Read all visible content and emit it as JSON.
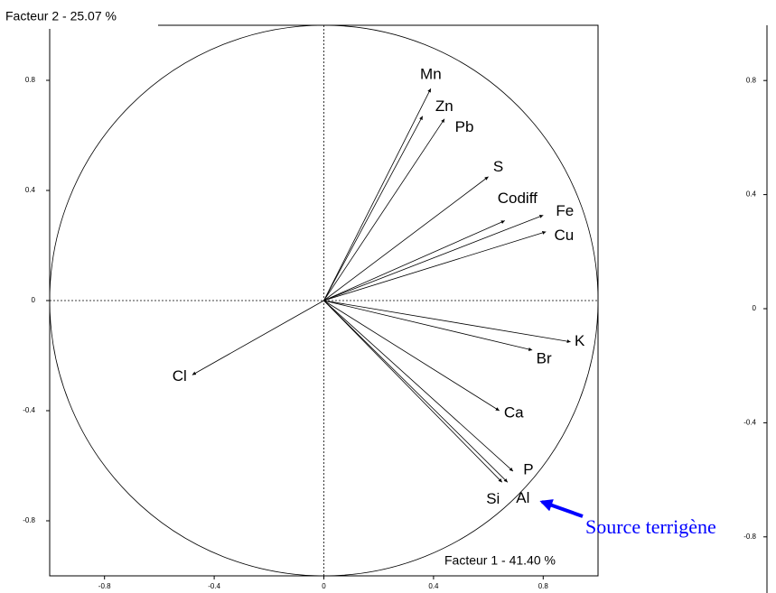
{
  "chart_data": [
    {
      "type": "correlation-circle",
      "title": "Facteur 2  -  25.07 %",
      "xlabel": "Facteur 1  -  41.40 %",
      "labels": [
        "Mn",
        "Zn",
        "Pb",
        "S",
        "Codiff",
        "Fe",
        "Cu",
        "K",
        "Br",
        "Ca",
        "P",
        "Al",
        "Si",
        "Cl"
      ],
      "x": [
        0.39,
        0.36,
        0.44,
        0.6,
        0.66,
        0.8,
        0.81,
        0.9,
        0.76,
        0.64,
        0.69,
        0.67,
        0.65,
        -0.48
      ],
      "values": [
        0.77,
        0.67,
        0.66,
        0.45,
        0.29,
        0.31,
        0.25,
        -0.15,
        -0.18,
        -0.4,
        -0.62,
        -0.66,
        -0.66,
        -0.27
      ],
      "xlim": [
        -1,
        1
      ],
      "ylim": [
        -1,
        1
      ],
      "xticks": [
        -0.8,
        -0.4,
        0,
        0.4,
        0.8
      ],
      "yticks": [
        0.8,
        0.4,
        0,
        -0.4,
        -0.8
      ],
      "annotation": "Source terrigène",
      "annotation_color": "#0000ff"
    },
    {
      "type": "correlation-circle",
      "ylim": [
        -1,
        1
      ],
      "yticks": [
        0.8,
        0.4,
        0,
        -0.4,
        -0.8
      ]
    }
  ]
}
